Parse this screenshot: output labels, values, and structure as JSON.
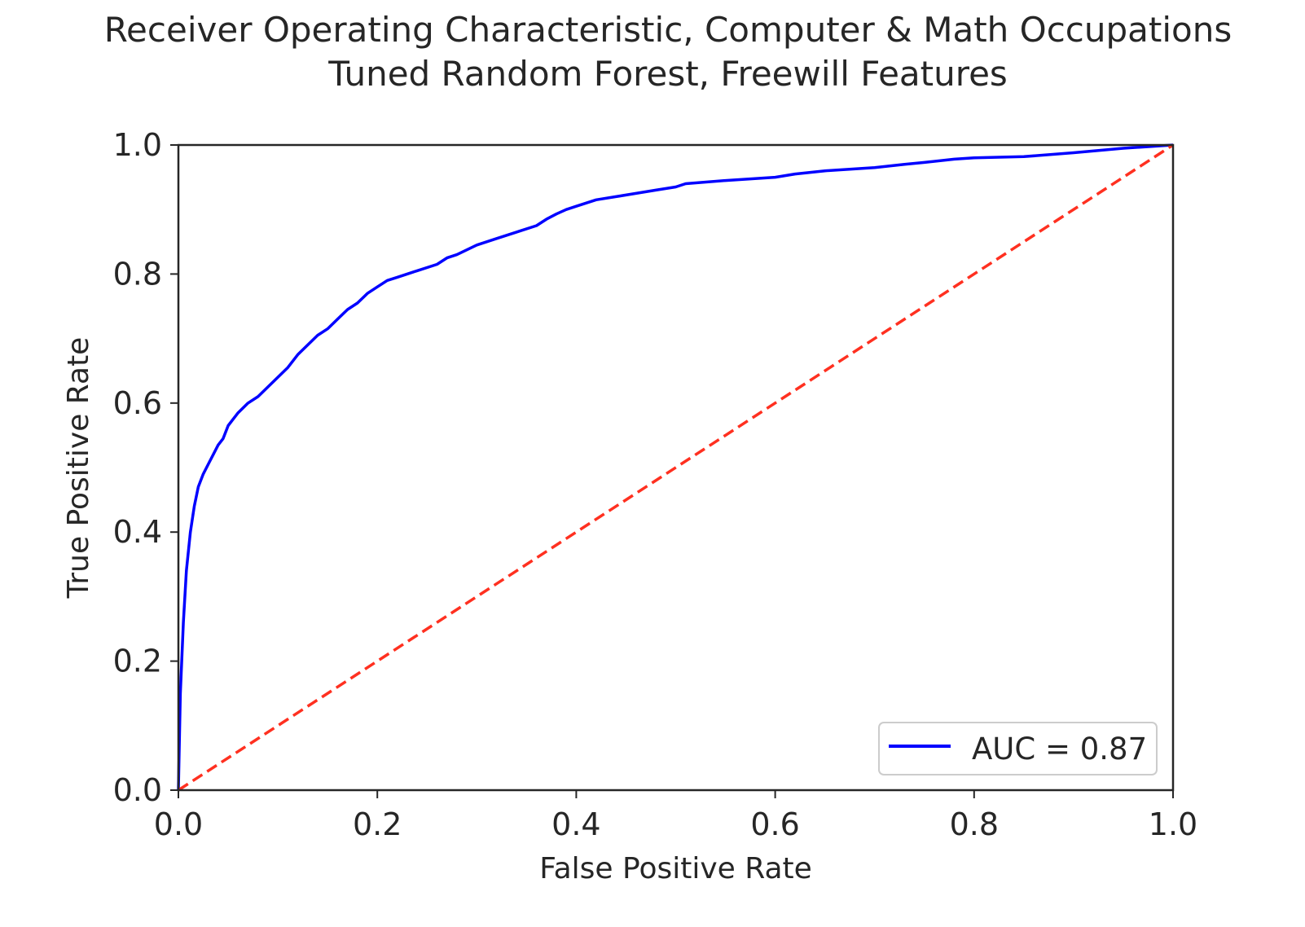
{
  "chart_data": {
    "type": "line",
    "title": "Receiver Operating Characteristic, Computer & Math Occupations",
    "subtitle": "Tuned Random Forest, Freewill Features",
    "xlabel": "False Positive Rate",
    "ylabel": "True Positive Rate",
    "xlim": [
      0.0,
      1.0
    ],
    "ylim": [
      0.0,
      1.0
    ],
    "x_ticks": [
      "0.0",
      "0.2",
      "0.4",
      "0.6",
      "0.8",
      "1.0"
    ],
    "y_ticks": [
      "0.0",
      "0.2",
      "0.4",
      "0.6",
      "0.8",
      "1.0"
    ],
    "grid": false,
    "legend_position": "lower-right",
    "series": [
      {
        "name": "AUC = 0.87",
        "color": "#0000ff",
        "style": "solid",
        "x": [
          0.0,
          0.002,
          0.005,
          0.008,
          0.012,
          0.016,
          0.02,
          0.025,
          0.03,
          0.035,
          0.04,
          0.045,
          0.05,
          0.055,
          0.06,
          0.07,
          0.08,
          0.09,
          0.1,
          0.11,
          0.12,
          0.13,
          0.14,
          0.15,
          0.16,
          0.17,
          0.18,
          0.19,
          0.2,
          0.21,
          0.22,
          0.24,
          0.26,
          0.27,
          0.28,
          0.3,
          0.32,
          0.34,
          0.36,
          0.37,
          0.38,
          0.39,
          0.4,
          0.42,
          0.44,
          0.46,
          0.48,
          0.5,
          0.51,
          0.55,
          0.6,
          0.62,
          0.65,
          0.7,
          0.73,
          0.75,
          0.78,
          0.8,
          0.85,
          0.9,
          0.95,
          1.0
        ],
        "y": [
          0.0,
          0.15,
          0.26,
          0.34,
          0.4,
          0.44,
          0.47,
          0.49,
          0.505,
          0.52,
          0.535,
          0.545,
          0.565,
          0.575,
          0.585,
          0.6,
          0.61,
          0.625,
          0.64,
          0.655,
          0.675,
          0.69,
          0.705,
          0.715,
          0.73,
          0.745,
          0.755,
          0.77,
          0.78,
          0.79,
          0.795,
          0.805,
          0.815,
          0.825,
          0.83,
          0.845,
          0.855,
          0.865,
          0.875,
          0.885,
          0.893,
          0.9,
          0.905,
          0.915,
          0.92,
          0.925,
          0.93,
          0.935,
          0.94,
          0.945,
          0.95,
          0.955,
          0.96,
          0.965,
          0.97,
          0.973,
          0.978,
          0.98,
          0.982,
          0.988,
          0.995,
          1.0
        ]
      },
      {
        "name": "",
        "color": "#ff3020",
        "style": "dashed",
        "x": [
          0.0,
          1.0
        ],
        "y": [
          0.0,
          1.0
        ]
      }
    ]
  }
}
